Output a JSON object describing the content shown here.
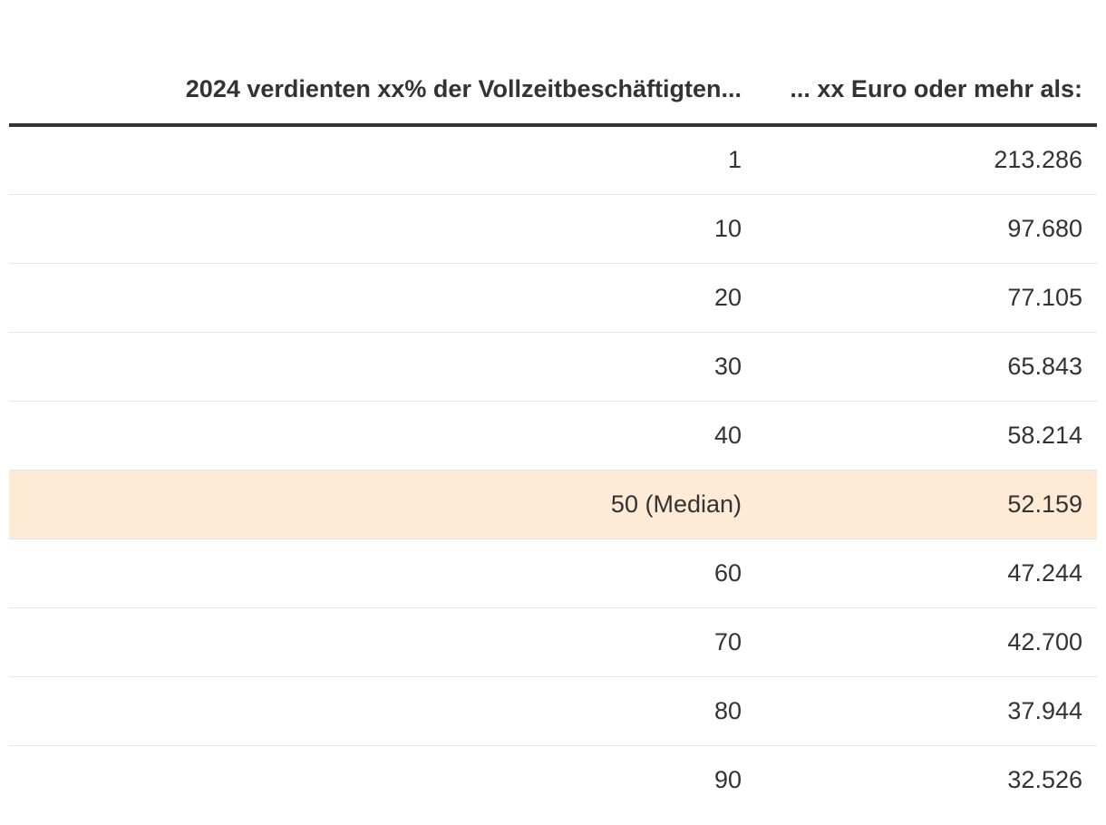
{
  "chart_data": {
    "type": "table",
    "columns": [
      "2024 verdienten xx% der Vollzeitbeschäftigten...",
      "... xx Euro oder mehr als:"
    ],
    "rows": [
      {
        "percent": "1",
        "euro": "213.286",
        "highlight": false
      },
      {
        "percent": "10",
        "euro": "97.680",
        "highlight": false
      },
      {
        "percent": "20",
        "euro": "77.105",
        "highlight": false
      },
      {
        "percent": "30",
        "euro": "65.843",
        "highlight": false
      },
      {
        "percent": "40",
        "euro": "58.214",
        "highlight": false
      },
      {
        "percent": "50 (Median)",
        "euro": "52.159",
        "highlight": true
      },
      {
        "percent": "60",
        "euro": "47.244",
        "highlight": false
      },
      {
        "percent": "70",
        "euro": "42.700",
        "highlight": false
      },
      {
        "percent": "80",
        "euro": "37.944",
        "highlight": false
      },
      {
        "percent": "90",
        "euro": "32.526",
        "highlight": false
      }
    ],
    "highlight_color": "#ffead6"
  }
}
